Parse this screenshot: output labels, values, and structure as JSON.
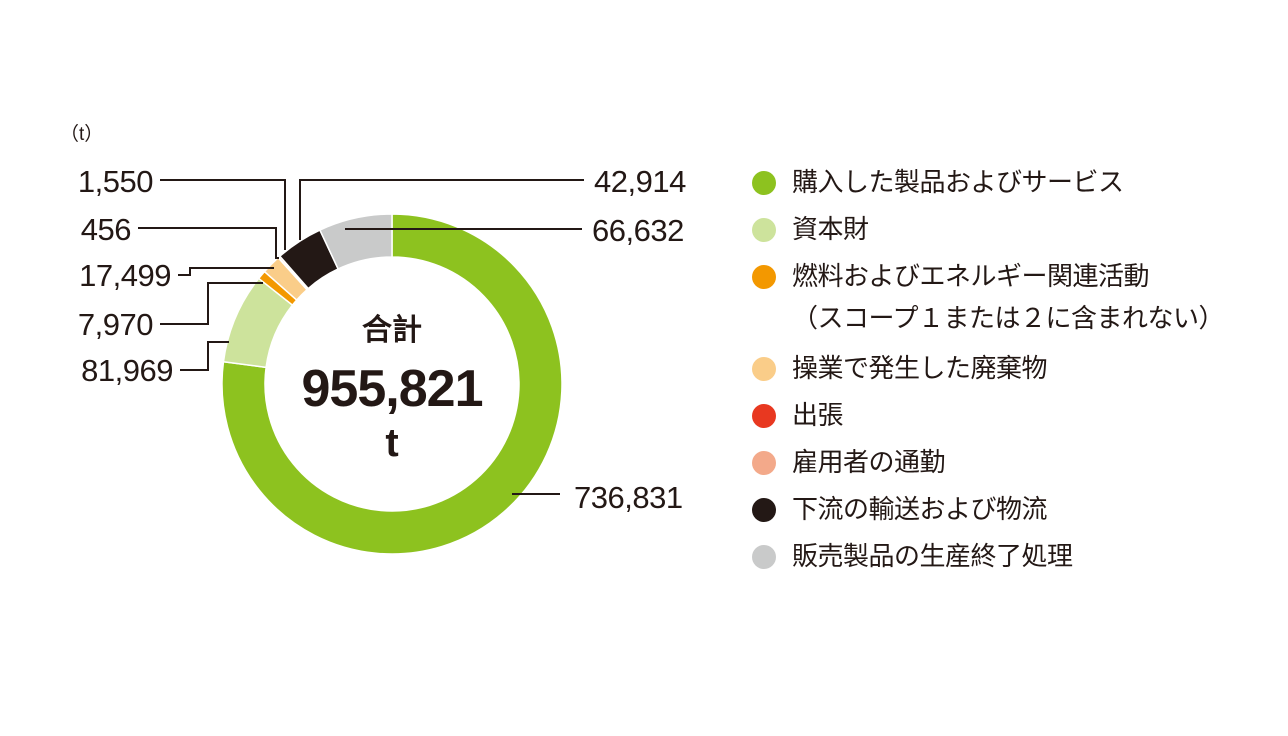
{
  "chart_data": {
    "type": "donut",
    "unit_label": "（t）",
    "center": {
      "label": "合計",
      "total": "955,821",
      "unit": "t"
    },
    "slices": [
      {
        "name": "購入した製品およびサービス",
        "value": 736831,
        "value_label": "736,831",
        "color": "#8dc21f"
      },
      {
        "name": "資本財",
        "value": 81969,
        "value_label": "81,969",
        "color": "#cde39c"
      },
      {
        "name": "燃料およびエネルギー関連活動\n（スコープ１または２に含まれない）",
        "value": 7970,
        "value_label": "7,970",
        "color": "#f39800"
      },
      {
        "name": "操業で発生した廃棄物",
        "value": 17499,
        "value_label": "17,499",
        "color": "#facd89"
      },
      {
        "name": "出張",
        "value": 456,
        "value_label": "456",
        "color": "#e83820"
      },
      {
        "name": "雇用者の通勤",
        "value": 1550,
        "value_label": "1,550",
        "color": "#f3a98a"
      },
      {
        "name": "下流の輸送および物流",
        "value": 42914,
        "value_label": "42,914",
        "color": "#231815"
      },
      {
        "name": "販売製品の生産終了処理",
        "value": 66632,
        "value_label": "66,632",
        "color": "#c9caca"
      }
    ]
  }
}
